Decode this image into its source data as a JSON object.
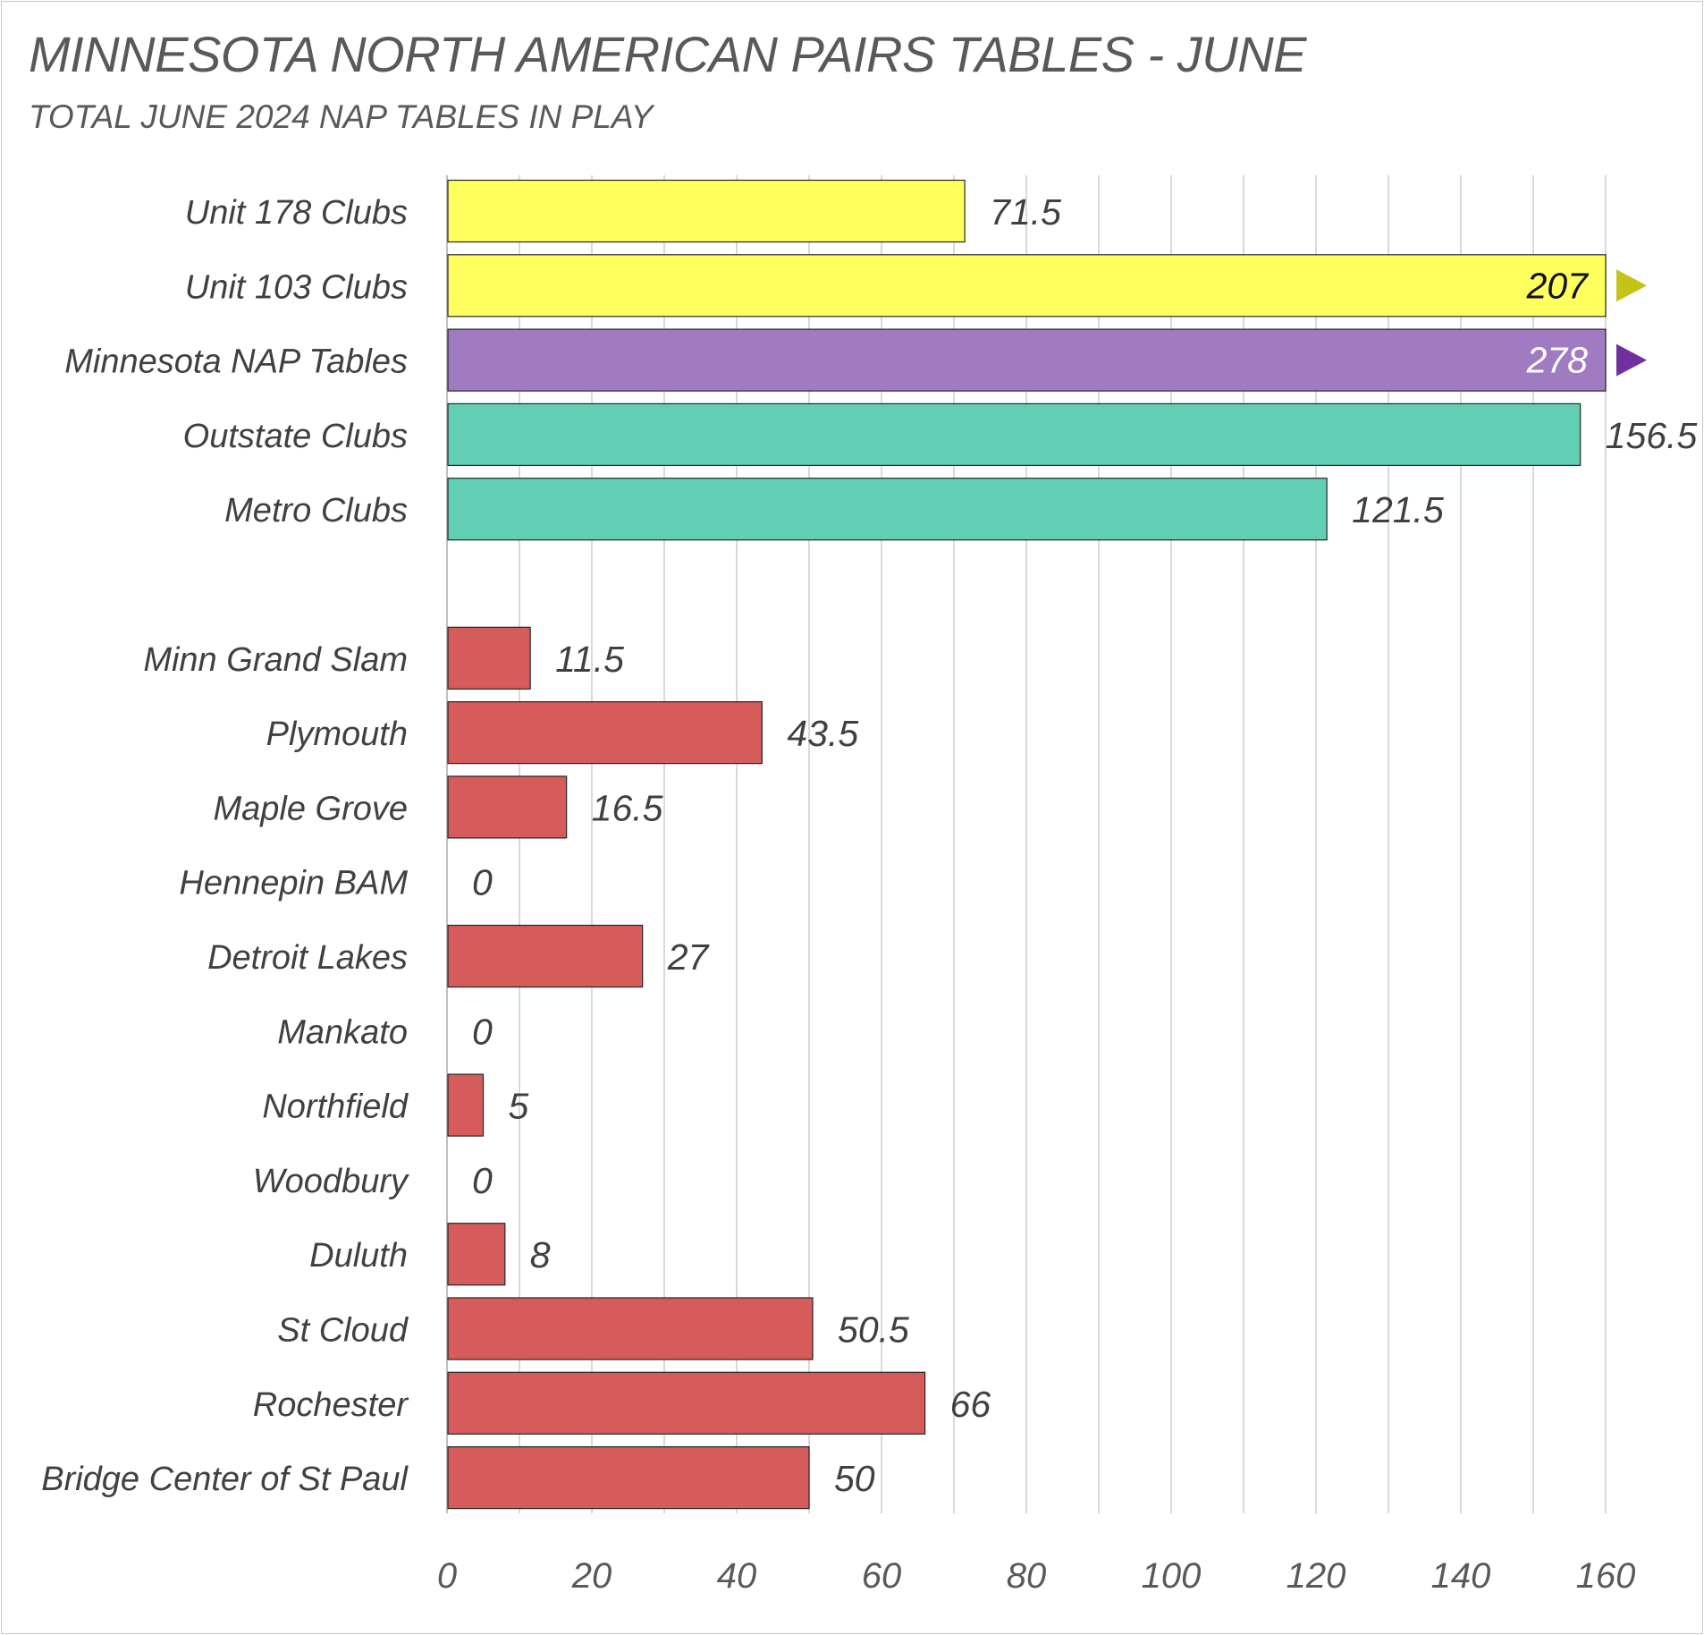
{
  "chart_data": {
    "type": "bar",
    "orientation": "horizontal",
    "title": "MINNESOTA NORTH AMERICAN PAIRS TABLES - JUNE",
    "subtitle": "TOTAL JUNE 2024 NAP TABLES IN PLAY",
    "xlim": [
      0,
      160
    ],
    "x_ticks": [
      "0",
      "20",
      "40",
      "60",
      "80",
      "100",
      "120",
      "140",
      "160"
    ],
    "grid": "vertical",
    "categories": [
      {
        "label": "Unit 178 Clubs",
        "value": 71.5,
        "value_label": "71.5",
        "color": "#ffff5e"
      },
      {
        "label": "Unit 103 Clubs",
        "value": 207,
        "value_label": "207",
        "color": "#ffff5e",
        "clipped": true,
        "marker_color": "#c4c417",
        "label_color": "#111111"
      },
      {
        "label": "Minnesota NAP Tables",
        "value": 278,
        "value_label": "278",
        "color": "#a07bc2",
        "clipped": true,
        "marker_color": "#7030a0",
        "label_color": "#ffffff"
      },
      {
        "label": "Outstate Clubs",
        "value": 156.5,
        "value_label": "156.5",
        "color": "#62cfb4"
      },
      {
        "label": "Metro Clubs",
        "value": 121.5,
        "value_label": "121.5",
        "color": "#62cfb4"
      },
      {
        "label": "",
        "value": null,
        "value_label": "",
        "color": ""
      },
      {
        "label": "Minn Grand Slam",
        "value": 11.5,
        "value_label": "11.5",
        "color": "#d65b5b"
      },
      {
        "label": "Plymouth",
        "value": 43.5,
        "value_label": "43.5",
        "color": "#d65b5b"
      },
      {
        "label": "Maple Grove",
        "value": 16.5,
        "value_label": "16.5",
        "color": "#d65b5b"
      },
      {
        "label": "Hennepin BAM",
        "value": 0,
        "value_label": "0",
        "color": "#d65b5b"
      },
      {
        "label": "Detroit Lakes",
        "value": 27,
        "value_label": "27",
        "color": "#d65b5b"
      },
      {
        "label": "Mankato",
        "value": 0,
        "value_label": "0",
        "color": "#d65b5b"
      },
      {
        "label": "Northfield",
        "value": 5,
        "value_label": "5",
        "color": "#d65b5b"
      },
      {
        "label": "Woodbury",
        "value": 0,
        "value_label": "0",
        "color": "#d65b5b"
      },
      {
        "label": "Duluth",
        "value": 8,
        "value_label": "8",
        "color": "#d65b5b"
      },
      {
        "label": "St Cloud",
        "value": 50.5,
        "value_label": "50.5",
        "color": "#d65b5b"
      },
      {
        "label": "Rochester",
        "value": 66,
        "value_label": "66",
        "color": "#d65b5b"
      },
      {
        "label": "Bridge Center of St Paul",
        "value": 50,
        "value_label": "50",
        "color": "#d65b5b"
      }
    ],
    "colors": {
      "text": "#404040",
      "gridline": "#d9d9d9",
      "axis_text": "#595959"
    }
  }
}
